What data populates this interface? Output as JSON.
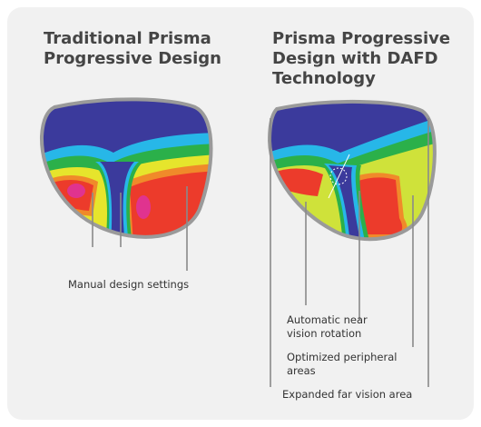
{
  "panels": [
    {
      "title_lines": [
        "Traditional Prisma",
        "Progressive Design"
      ],
      "annotations": [
        {
          "lines": [
            "Manual design settings"
          ]
        }
      ]
    },
    {
      "title_lines": [
        "Prisma Progressive",
        "Design with DAFD",
        "Technology"
      ],
      "annotations": [
        {
          "lines": [
            "Automatic near",
            "vision rotation"
          ]
        },
        {
          "lines": [
            "Optimized peripheral",
            "areas"
          ]
        },
        {
          "lines": [
            "Expanded far vision area"
          ]
        }
      ]
    }
  ]
}
